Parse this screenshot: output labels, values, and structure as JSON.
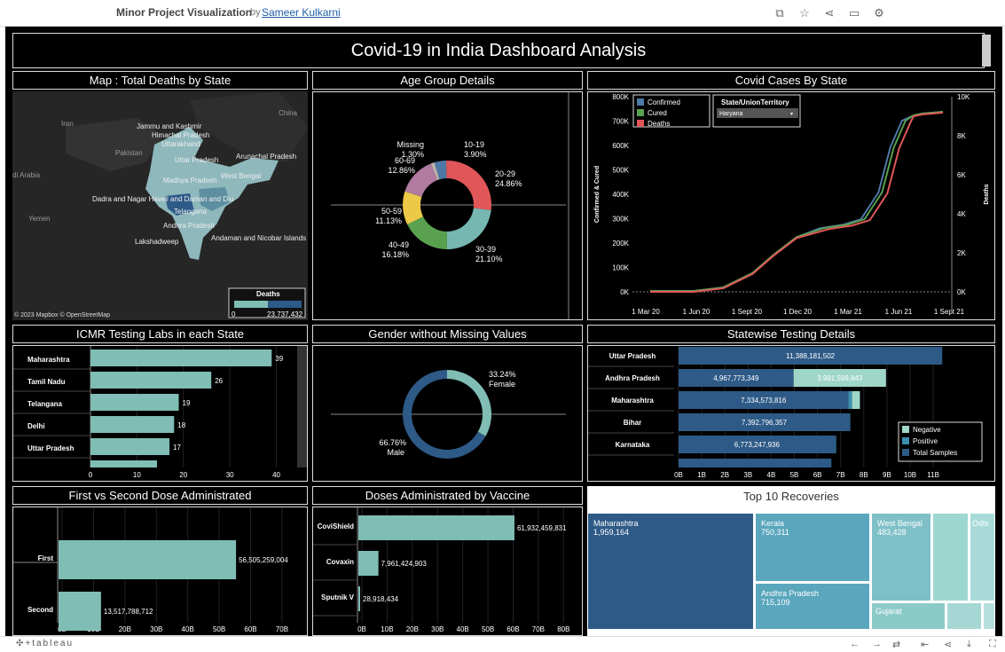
{
  "header": {
    "title": "Minor Project Visualization",
    "by": "by",
    "author": "Sameer Kulkarni"
  },
  "header_icons": [
    "copy-icon",
    "star-icon",
    "share-icon",
    "comment-icon",
    "settings-icon"
  ],
  "dashboard": {
    "title": "Covid-19 in India Dashboard Analysis"
  },
  "map": {
    "title": "Map : Total Deaths by State",
    "labels": [
      "Jammu and Kashmir",
      "Himachal Pradesh",
      "Uttarakhand",
      "Uttar Pradesh",
      "Arunachal Pradesh",
      "West Bengal",
      "Madhya Pradesh",
      "Dadra and Nagar Haveli and Daman and Diu",
      "Telangana",
      "Andhra Pradesh",
      "Andaman and Nicobar Islands",
      "Lakshadweep",
      "China",
      "Iran",
      "Pakistan",
      "di Arabia",
      "Yemen"
    ],
    "legend_title": "Deaths",
    "legend_min": "0",
    "legend_max": "23,737,432",
    "credit": "© 2023 Mapbox  © OpenStreetMap"
  },
  "age": {
    "title": "Age Group Details",
    "chart_data": {
      "type": "pie",
      "labels": [
        "Missing",
        "10-19",
        "20-29",
        "30-39",
        "40-49",
        "50-59",
        "60-69"
      ],
      "pct": [
        "1.30%",
        "3.90%",
        "24.86%",
        "21.10%",
        "16.18%",
        "11.13%",
        "12.86%"
      ],
      "values": [
        1.3,
        3.9,
        24.86,
        21.1,
        16.18,
        11.13,
        12.86
      ]
    }
  },
  "cases": {
    "title": "Covid Cases By State",
    "chart_data": {
      "type": "line",
      "x": [
        "1 Mar 20",
        "1 Jun 20",
        "1 Sept 20",
        "1 Dec 20",
        "1 Mar 21",
        "1 Jun 21",
        "1 Sept 21"
      ],
      "yleft": [
        "0K",
        "100K",
        "200K",
        "300K",
        "400K",
        "500K",
        "600K",
        "700K",
        "800K"
      ],
      "yright": [
        "0K",
        "2K",
        "4K",
        "6K",
        "8K",
        "10K"
      ],
      "ylabel_left": "Confirmed & Cured",
      "ylabel_right": "Deaths",
      "legend": [
        "Confirmed",
        "Cured",
        "Deaths"
      ],
      "filter_label": "State/UnionTerritory",
      "filter_value": "Haryana"
    }
  },
  "icmr": {
    "title": "ICMR Testing Labs in each State",
    "chart_data": {
      "type": "bar",
      "categories": [
        "Maharashtra",
        "Tamil Nadu",
        "Telangana",
        "Delhi",
        "Uttar Pradesh"
      ],
      "values": [
        39,
        26,
        19,
        18,
        17
      ],
      "xticks": [
        "0",
        "10",
        "20",
        "30",
        "40"
      ]
    }
  },
  "gender": {
    "title": "Gender without Missing Values",
    "chart_data": {
      "type": "pie",
      "labels": [
        "Female",
        "Male"
      ],
      "pct": [
        "33.24%",
        "66.76%"
      ],
      "values": [
        33.24,
        66.76
      ]
    }
  },
  "testing": {
    "title": "Statewise Testing Details",
    "chart_data": {
      "type": "bar",
      "categories": [
        "Uttar Pradesh",
        "Andhra Pradesh",
        "Maharashtra",
        "Bihar",
        "Karnataka"
      ],
      "labels": [
        "11,388,181,502",
        "4,967,773,349",
        "7,334,573,816",
        "7,392,796,357",
        "6,773,247,936"
      ],
      "extra_label": "3,991,599,843",
      "xticks": [
        "0B",
        "1B",
        "2B",
        "3B",
        "4B",
        "5B",
        "6B",
        "7B",
        "8B",
        "9B",
        "10B",
        "11B"
      ],
      "legend": [
        "Negative",
        "Positive",
        "Total Samples"
      ]
    }
  },
  "dose": {
    "title": "First vs Second Dose Administrated",
    "chart_data": {
      "type": "bar",
      "categories": [
        "First",
        "Second"
      ],
      "values": [
        56505259004,
        13517788712
      ],
      "labels": [
        "56,505,259,004",
        "13,517,788,712"
      ],
      "xticks": [
        "0B",
        "10B",
        "20B",
        "30B",
        "40B",
        "50B",
        "60B",
        "70B"
      ]
    }
  },
  "vaccine": {
    "title": "Doses Administrated by Vaccine",
    "chart_data": {
      "type": "bar",
      "categories": [
        "CoviShield",
        "Covaxin",
        "Sputnik V"
      ],
      "values": [
        61932459831,
        7961424903,
        28918434
      ],
      "labels": [
        "61,932,459,831",
        "7,961,424,903",
        "28,918,434"
      ],
      "xticks": [
        "0B",
        "10B",
        "20B",
        "30B",
        "40B",
        "50B",
        "60B",
        "70B",
        "80B"
      ]
    }
  },
  "recov": {
    "title": "Top 10 Recoveries",
    "cells": [
      {
        "name": "Maharashtra",
        "val": "1,959,164"
      },
      {
        "name": "Kerala",
        "val": "750,311"
      },
      {
        "name": "West Bengal",
        "val": "483,428"
      },
      {
        "name": "Odis",
        "val": ""
      },
      {
        "name": "Andhra Pradesh",
        "val": "715,109"
      },
      {
        "name": "Gujarat",
        "val": ""
      }
    ]
  },
  "footer": {
    "logo": "tableau"
  },
  "colors": {
    "teal": "#7fbdb5",
    "navy": "#2e5a87",
    "light": "#9ed6c8",
    "green": "#53a447",
    "red": "#e15759",
    "blue": "#4e79a7"
  }
}
